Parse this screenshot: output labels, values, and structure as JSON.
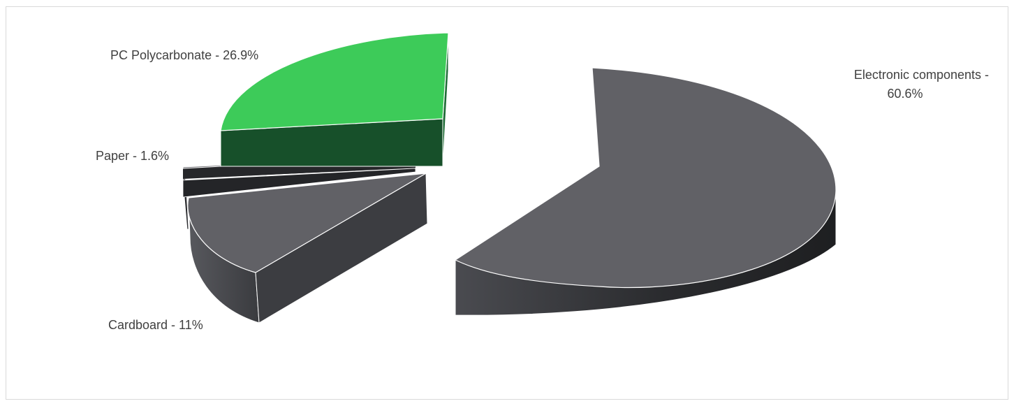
{
  "chart_data": {
    "type": "pie",
    "style": "3d-exploded",
    "title": "",
    "legend": "none",
    "slices": [
      {
        "name": "Electronic components",
        "value": 60.6,
        "label_line1": "Electronic components -",
        "label_line2": "60.6%",
        "top_color": "#616166",
        "side_color": "#2a2b2e"
      },
      {
        "name": "Cardboard",
        "value": 11,
        "label_line1": "Cardboard - 11%",
        "label_line2": "",
        "top_color": "#616166",
        "side_color": "#3b3c40"
      },
      {
        "name": "Paper",
        "value": 1.6,
        "label_line1": "Paper - 1.6%",
        "label_line2": "",
        "top_color": "#616166",
        "side_color": "#26272a"
      },
      {
        "name": "PC Polycarbonate",
        "value": 26.9,
        "label_line1": "PC Polycarbonate - 26.9%",
        "label_line2": "",
        "top_color": "#3dcb59",
        "side_color": "#17502a"
      }
    ]
  }
}
